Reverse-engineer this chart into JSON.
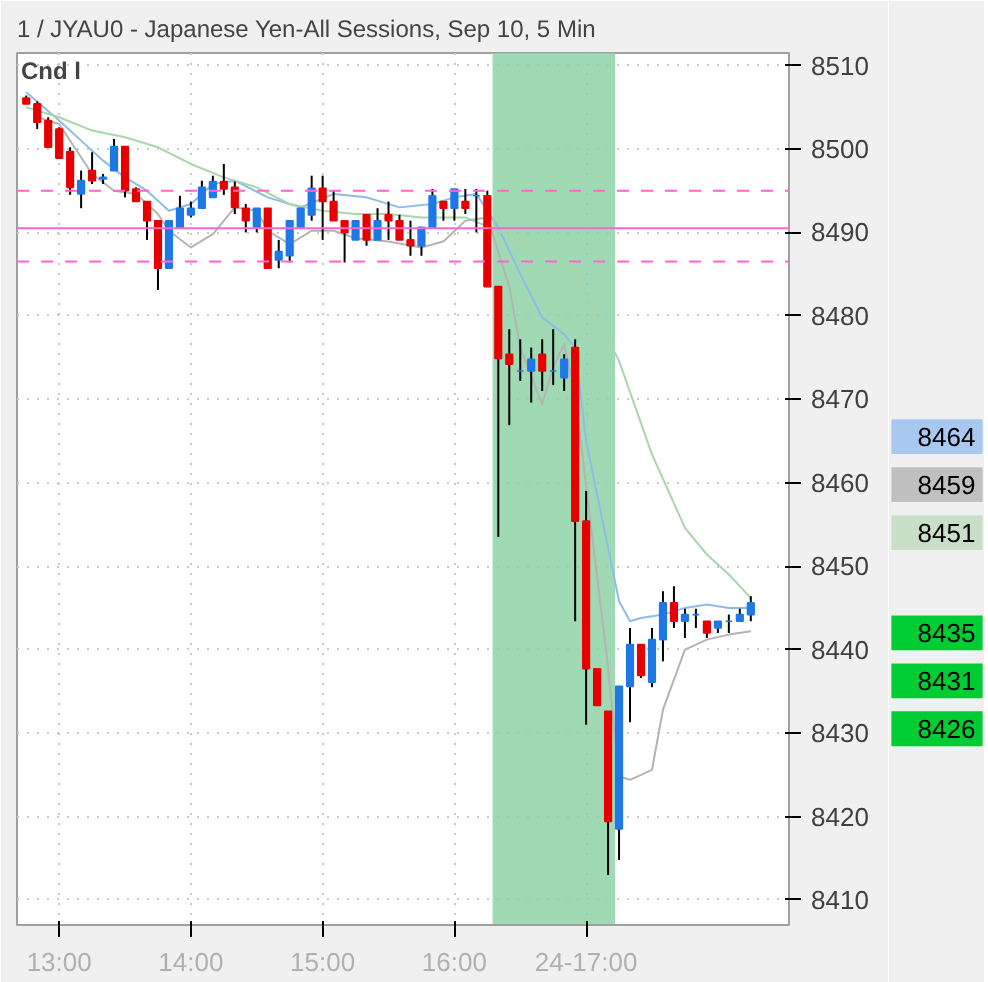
{
  "chart_data": {
    "type": "candlestick",
    "title": "1 / JYAU0 - Japanese Yen-All Sessions, Sep 10, 5 Min",
    "annotations": [
      "Cnd l",
      "8464",
      "8459",
      "8451",
      "8435",
      "8431",
      "8426"
    ],
    "x": [
      12.75,
      12.8333,
      12.9167,
      13,
      13.0833,
      13.1667,
      13.25,
      13.3333,
      13.4167,
      13.5,
      13.5833,
      13.6667,
      13.75,
      13.8333,
      13.9167,
      14,
      14.0833,
      14.1667,
      14.25,
      14.3333,
      14.4167,
      14.5,
      14.5833,
      14.6667,
      14.75,
      14.8333,
      14.9167,
      15,
      15.0833,
      15.1667,
      15.25,
      15.3333,
      15.4167,
      15.5,
      15.5833,
      15.6667,
      15.75,
      15.8333,
      15.9167,
      16,
      16.0833,
      16.1667,
      16.25,
      16.3333,
      16.4167,
      16.5,
      16.5833,
      16.6667,
      16.75,
      16.8333,
      16.9167,
      17,
      17.0833,
      17.1667,
      17.25,
      17.3333,
      17.4167,
      17.5,
      17.5833,
      17.6667,
      17.75,
      17.8333,
      17.9167,
      18,
      18.0833,
      18.1667,
      18.25
    ],
    "ohlc": [
      [
        8506.1,
        8506.4,
        8505.4,
        8505.4
      ],
      [
        8505.4,
        8505.7,
        8502.4,
        8503.2
      ],
      [
        8503.4,
        8503.8,
        8500.2,
        8500.2
      ],
      [
        8502.4,
        8502.6,
        8498.9,
        8498.9
      ],
      [
        8499.7,
        8500.2,
        8494.5,
        8495.4
      ],
      [
        8494.6,
        8497.4,
        8492.9,
        8496.2
      ],
      [
        8497.4,
        8499.6,
        8495.8,
        8496.2
      ],
      [
        8496.4,
        8497,
        8495.8,
        8496.6
      ],
      [
        8497.4,
        8501.2,
        8497.4,
        8500.3
      ],
      [
        8500.3,
        8500.3,
        8494.2,
        8495.0
      ],
      [
        8495.2,
        8495.4,
        8493.7,
        8493.7
      ],
      [
        8493.7,
        8493.7,
        8489.1,
        8491.4
      ],
      [
        8491.4,
        8491.4,
        8483.1,
        8485.7
      ],
      [
        8485.7,
        8491.4,
        8485.7,
        8491.4
      ],
      [
        8490.6,
        8494.4,
        8490.6,
        8492.9
      ],
      [
        8492.1,
        8493.7,
        8491.8,
        8492.9
      ],
      [
        8492.9,
        8496.2,
        8492.9,
        8495.4
      ],
      [
        8494.2,
        8496.8,
        8494.2,
        8496.1
      ],
      [
        8496.1,
        8498.2,
        8494.5,
        8495.2
      ],
      [
        8495.4,
        8496.1,
        8492.2,
        8493.0
      ],
      [
        8492.9,
        8493.4,
        8490.0,
        8491.4
      ],
      [
        8490.6,
        8492.9,
        8490.0,
        8492.9
      ],
      [
        8492.9,
        8492.9,
        8485.7,
        8485.7
      ],
      [
        8486.7,
        8489.1,
        8485.7,
        8487.7
      ],
      [
        8487.2,
        8491.4,
        8486.4,
        8491.4
      ],
      [
        8490.6,
        8492.9,
        8490.6,
        8492.9
      ],
      [
        8492.1,
        8496.8,
        8491.4,
        8495.3
      ],
      [
        8495.3,
        8496.8,
        8489.1,
        8493.7
      ],
      [
        8493.7,
        8495.0,
        8491.4,
        8491.4
      ],
      [
        8491.4,
        8491.4,
        8486.4,
        8490.0
      ],
      [
        8489.1,
        8491.4,
        8489.1,
        8491.4
      ],
      [
        8492.1,
        8492.1,
        8488.4,
        8489.1
      ],
      [
        8489.1,
        8492.9,
        8489.1,
        8491.4
      ],
      [
        8492.1,
        8493.7,
        8489.1,
        8491.4
      ],
      [
        8491.4,
        8492.1,
        8489.1,
        8489.1
      ],
      [
        8489.1,
        8491.4,
        8487.2,
        8488.4
      ],
      [
        8488.4,
        8490.6,
        8487.2,
        8490.6
      ],
      [
        8490.6,
        8495.2,
        8490.6,
        8494.4
      ],
      [
        8493.7,
        8493.7,
        8491.4,
        8492.9
      ],
      [
        8492.9,
        8495.2,
        8491.4,
        8495.2
      ],
      [
        8493.7,
        8495.2,
        8492.2,
        8492.9
      ],
      [
        8494.4,
        8495.2,
        8490.0,
        8494.4
      ],
      [
        8494.4,
        8495.0,
        8483.5,
        8483.5
      ],
      [
        8483.5,
        8483.5,
        8453.5,
        8474.9
      ],
      [
        8475.4,
        8478.4,
        8466.9,
        8474.2
      ],
      [
        8473.4,
        8477.2,
        8472.2,
        8473.4
      ],
      [
        8473.4,
        8476.2,
        8469.6,
        8474.8
      ],
      [
        8475.4,
        8477.2,
        8471.0,
        8473.4
      ],
      [
        8473.4,
        8478.4,
        8471.7,
        8473.4
      ],
      [
        8472.6,
        8475.4,
        8471.0,
        8474.8
      ],
      [
        8476.2,
        8477.2,
        8443.4,
        8455.4
      ],
      [
        8455.4,
        8459.0,
        8431.0,
        8437.7
      ],
      [
        8437.7,
        8437.7,
        8433.3,
        8433.3
      ],
      [
        8432.6,
        8432.6,
        8413.0,
        8419.4
      ],
      [
        8418.5,
        8435.6,
        8414.8,
        8435.6
      ],
      [
        8435.6,
        8442.6,
        8431.3,
        8440.6
      ],
      [
        8440.6,
        8440.6,
        8436.6,
        8436.9
      ],
      [
        8436.1,
        8442.6,
        8435.5,
        8441.2
      ],
      [
        8441.2,
        8447.0,
        8438.6,
        8445.6
      ],
      [
        8445.6,
        8447.6,
        8442.6,
        8443.4
      ],
      [
        8443.4,
        8444.9,
        8441.4,
        8444.2
      ],
      [
        8444.2,
        8444.9,
        8442.6,
        8444.2
      ],
      [
        8443.4,
        8443.4,
        8441.4,
        8442.0
      ],
      [
        8442.6,
        8443.4,
        8442.0,
        8443.4
      ],
      [
        8443.4,
        8444.2,
        8442.0,
        8443.4
      ],
      [
        8443.4,
        8444.9,
        8443.4,
        8444.2
      ],
      [
        8444.2,
        8446.4,
        8443.4,
        8445.6
      ]
    ],
    "colors": [
      "#e60000",
      "#e60000",
      "#e60000",
      "#e60000",
      "#e60000",
      "#1e78e6",
      "#e60000",
      "#1e78e6",
      "#1e78e6",
      "#e60000",
      "#e60000",
      "#e60000",
      "#e60000",
      "#1e78e6",
      "#1e78e6",
      "#1e78e6",
      "#1e78e6",
      "#1e78e6",
      "#e60000",
      "#e60000",
      "#e60000",
      "#1e78e6",
      "#e60000",
      "#1e78e6",
      "#1e78e6",
      "#1e78e6",
      "#1e78e6",
      "#e60000",
      "#e60000",
      "#e60000",
      "#1e78e6",
      "#e60000",
      "#1e78e6",
      "#e60000",
      "#e60000",
      "#e60000",
      "#1e78e6",
      "#1e78e6",
      "#e60000",
      "#1e78e6",
      "#e60000",
      "#1e78e6",
      "#e60000",
      "#e60000",
      "#e60000",
      "#1e78e6",
      "#1e78e6",
      "#e60000",
      "#1e78e6",
      "#1e78e6",
      "#e60000",
      "#e60000",
      "#e60000",
      "#e60000",
      "#1e78e6",
      "#1e78e6",
      "#e60000",
      "#1e78e6",
      "#1e78e6",
      "#e60000",
      "#1e78e6",
      "#1e78e6",
      "#e60000",
      "#1e78e6",
      "#1e78e6",
      "#1e78e6",
      "#1e78e6"
    ],
    "series": [
      {
        "type": "line",
        "color": "#8fbbe8",
        "x": [
          12.75,
          13,
          13.1667,
          13.3333,
          13.5,
          13.6667,
          13.8333,
          14,
          14.1667,
          14.3333,
          14.5833,
          14.8333,
          15.0833,
          15.3333,
          15.5833,
          15.8333,
          16,
          16.1667,
          16.3333,
          16.5,
          16.6667,
          16.8333,
          16.9167,
          17,
          17.1667,
          17.25,
          17.3333,
          17.4167,
          17.5833,
          17.75,
          17.9167,
          18.0833,
          18.25
        ],
        "values": [
          8506.8,
          8503.4,
          8501,
          8498.6,
          8496.6,
          8495,
          8492.6,
          8493.4,
          8495.8,
          8496.2,
          8494.2,
          8493,
          8494.6,
          8494.2,
          8493,
          8493.4,
          8494.2,
          8494.6,
          8490.6,
          8485,
          8479.8,
          8477.8,
          8476.2,
          8465,
          8452.2,
          8445.8,
          8443.4,
          8443.8,
          8444.2,
          8445,
          8445.4,
          8445,
          8445
        ]
      },
      {
        "type": "line",
        "color": "#a9d6a9",
        "x": [
          12.75,
          13,
          13.25,
          13.5,
          13.75,
          14,
          14.25,
          14.5,
          14.75,
          15,
          15.25,
          15.5,
          15.75,
          16,
          16.0833,
          16.3333,
          16.6667,
          16.9167,
          17.0833,
          17.25,
          17.5,
          17.75,
          17.9167,
          18.0833,
          18.25
        ],
        "values": [
          8505,
          8503.8,
          8502.2,
          8501.4,
          8500.2,
          8498.2,
          8496.6,
          8495.4,
          8493.4,
          8492.6,
          8492.2,
          8492.2,
          8491.8,
          8491.8,
          8491.8,
          8490.2,
          8487.4,
          8485,
          8479.8,
          8474.6,
          8463.4,
          8454.6,
          8451.4,
          8449,
          8446.2
        ]
      },
      {
        "type": "line",
        "color": "#b4b4b4",
        "x": [
          12.8333,
          13,
          13.25,
          13.4167,
          13.5833,
          13.75,
          13.8333,
          14,
          14.1667,
          14.3333,
          14.5,
          14.5833,
          14.75,
          14.9167,
          15.0833,
          15.25,
          15.5,
          15.75,
          15.9167,
          16.0833,
          16.25,
          16.4167,
          16.5,
          16.6667,
          16.75,
          16.8333,
          16.9167,
          17.1667,
          17.25,
          17.3333,
          17.5,
          17.5833,
          17.75,
          17.9167,
          18.0833,
          18.25
        ],
        "values": [
          8503.8,
          8503,
          8497,
          8495,
          8494.6,
          8492.2,
          8490.2,
          8488.2,
          8489.8,
          8493,
          8492.6,
          8490.2,
          8488.6,
          8490.2,
          8490.2,
          8489.3,
          8488.9,
          8488.2,
          8488.9,
          8491.4,
          8491.8,
          8483.5,
          8476.2,
          8469.4,
          8473.9,
          8476.6,
          8470.6,
          8437.8,
          8424.8,
          8424.4,
          8425.6,
          8432.8,
          8440,
          8441.2,
          8441.8,
          8442.2
        ]
      }
    ],
    "xlim": [
      12.68,
      18.54
    ],
    "ylim": [
      8407,
      8511.5
    ],
    "xticks": [
      {
        "value": 13,
        "label": "13:00"
      },
      {
        "value": 14,
        "label": "14:00"
      },
      {
        "value": 15,
        "label": "15:00"
      },
      {
        "value": 16,
        "label": "16:00"
      },
      {
        "value": 17,
        "label": "24-17:00"
      }
    ],
    "yticks": [
      8410,
      8420,
      8430,
      8440,
      8450,
      8460,
      8470,
      8480,
      8490,
      8500,
      8510
    ],
    "grid": true,
    "line_style": "solid",
    "marker": "none",
    "ref_lines": [
      {
        "axis": "y",
        "value": 8495,
        "color": "#ff66cc",
        "line_style": "dashed"
      },
      {
        "axis": "y",
        "value": 8490.5,
        "color": "#ff66cc",
        "line_style": "solid"
      },
      {
        "axis": "y",
        "value": 8486.5,
        "color": "#ff66cc",
        "line_style": "dashed"
      }
    ],
    "bands": [
      {
        "axis": "x",
        "from": 16.29,
        "to": 17.22,
        "color": "#8fd4a8"
      }
    ]
  }
}
